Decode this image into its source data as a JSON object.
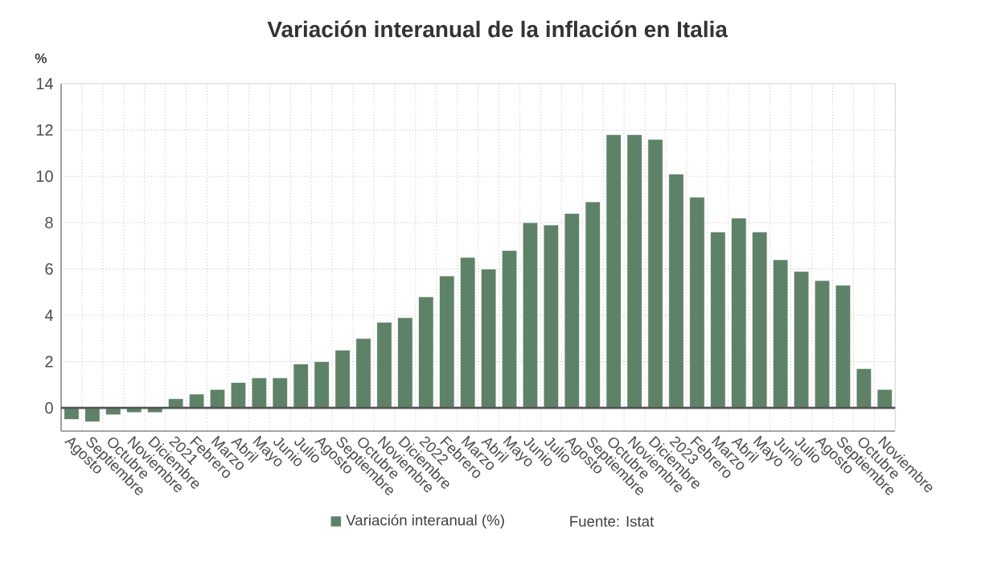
{
  "chart_data": {
    "type": "bar",
    "title": "Variación interanual de la inflación en Italia",
    "ylabel": "%",
    "categories": [
      "Agosto",
      "Septiembre",
      "Octubre",
      "Noviembre",
      "Diciembre",
      "2021",
      "Febrero",
      "Marzo",
      "Abril",
      "Mayo",
      "Junio",
      "Julio",
      "Agosto",
      "Septiembre",
      "Octubre",
      "Noviembre",
      "Diciembre",
      "2022",
      "Febrero",
      "Marzo",
      "Abril",
      "Mayo",
      "Junio",
      "Julio",
      "Agosto",
      "Septiembre",
      "Octubre",
      "Noviembre",
      "Diciembre",
      "2023",
      "Febrero",
      "Marzo",
      "Abril",
      "Mayo",
      "Junio",
      "Julio",
      "Agosto",
      "Septiembre",
      "Octubre",
      "Noviembre"
    ],
    "series": [
      {
        "name": "Variación interanual (%)",
        "color": "#5e8267",
        "values": [
          -0.5,
          -0.6,
          -0.3,
          -0.2,
          -0.2,
          0.4,
          0.6,
          0.8,
          1.1,
          1.3,
          1.3,
          1.9,
          2.0,
          2.5,
          3.0,
          3.7,
          3.9,
          4.8,
          5.7,
          6.5,
          6.0,
          6.8,
          8.0,
          7.9,
          8.4,
          8.9,
          11.8,
          11.8,
          11.6,
          10.1,
          9.1,
          7.6,
          8.2,
          7.6,
          6.4,
          5.9,
          5.5,
          5.3,
          1.7,
          0.8
        ]
      }
    ],
    "ylim": [
      -1,
      14
    ],
    "yticks": [
      0,
      2,
      4,
      6,
      8,
      10,
      12,
      14
    ],
    "grid": true,
    "legend": "bottom",
    "ref_lines": [
      {
        "axis": "y",
        "value": 0,
        "color": "#555555"
      }
    ],
    "annotations": [
      "Fuente: Istat"
    ]
  }
}
